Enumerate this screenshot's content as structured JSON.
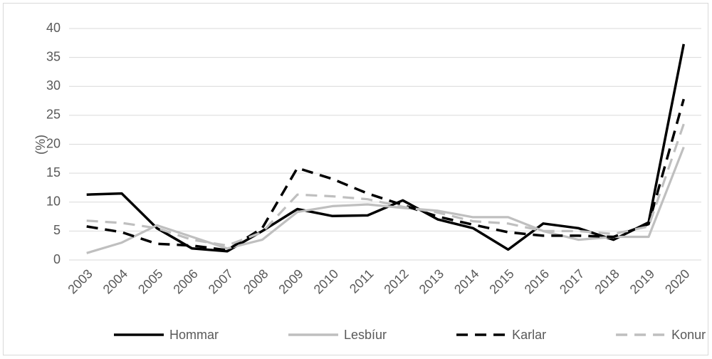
{
  "chart_data": {
    "type": "line",
    "ylabel": "(%)",
    "categories": [
      "2003",
      "2004",
      "2005",
      "2006",
      "2007",
      "2008",
      "2009",
      "2010",
      "2011",
      "2012",
      "2013",
      "2014",
      "2015",
      "2016",
      "2017",
      "2018",
      "2019",
      "2020"
    ],
    "series": [
      {
        "name": "Hommar",
        "color": "#000000",
        "dash": "solid",
        "values": [
          11.3,
          11.5,
          5.5,
          2,
          1.5,
          5,
          8.8,
          7.6,
          7.7,
          10.3,
          7,
          5.5,
          1.8,
          6.3,
          5.5,
          3.5,
          6.5,
          37.3
        ]
      },
      {
        "name": "Lesbíur",
        "color": "#bfbfbf",
        "dash": "solid",
        "values": [
          1.2,
          3,
          6,
          4,
          2,
          3.5,
          8.3,
          9.3,
          9.6,
          9,
          8.5,
          7.4,
          7.4,
          5,
          3.5,
          4,
          4,
          19.5
        ]
      },
      {
        "name": "Karlar",
        "color": "#000000",
        "dash": "dashed",
        "values": [
          5.8,
          4.8,
          2.8,
          2.5,
          1.7,
          5.5,
          15.9,
          14,
          11.5,
          9.5,
          7.5,
          6.1,
          4.8,
          4.2,
          4.2,
          4,
          6.2,
          27.8
        ]
      },
      {
        "name": "Konur",
        "color": "#bfbfbf",
        "dash": "dashed",
        "values": [
          6.8,
          6.4,
          5.5,
          3.5,
          2.5,
          4.8,
          11.3,
          11,
          10.5,
          9.2,
          8.2,
          6.7,
          6.3,
          5,
          5,
          4.5,
          5.8,
          23.5
        ]
      }
    ],
    "ylim": [
      0,
      40
    ],
    "yticks": [
      0,
      5,
      10,
      15,
      20,
      25,
      30,
      35,
      40
    ],
    "grid": true,
    "legend": "bottom"
  }
}
